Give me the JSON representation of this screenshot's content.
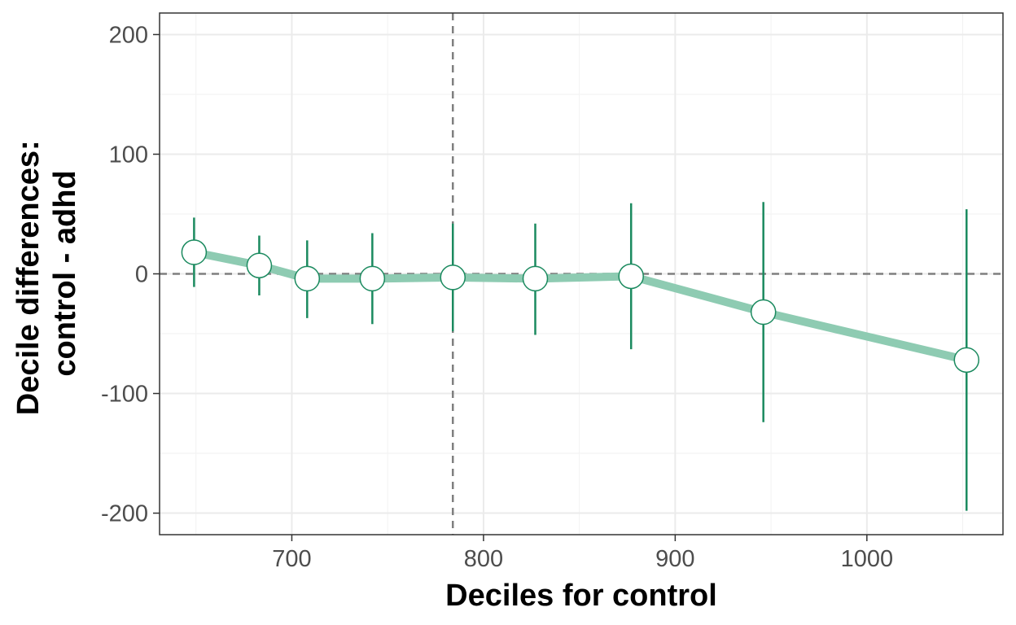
{
  "chart_data": {
    "type": "line",
    "xlabel": "Deciles for control",
    "ylabel_lines": [
      "Decile differences:",
      "control - adhd"
    ],
    "xlim": [
      631,
      1071
    ],
    "ylim": [
      -218,
      218
    ],
    "x_ticks": [
      700,
      800,
      900,
      1000
    ],
    "x_tick_labels": [
      "700",
      "800",
      "900",
      "1000"
    ],
    "x_minor_ticks": [
      650,
      750,
      850,
      950,
      1050
    ],
    "y_ticks": [
      -200,
      -100,
      0,
      100,
      200
    ],
    "y_tick_labels": [
      "-200",
      "-100",
      "0",
      "100",
      "200"
    ],
    "y_minor_ticks": [
      -150,
      -50,
      50,
      150
    ],
    "grid": true,
    "reference_lines": {
      "horizontal_y": 0,
      "vertical_x": 784
    },
    "series": [
      {
        "points": [
          {
            "x": 649,
            "y": 18,
            "lower": -11,
            "upper": 47
          },
          {
            "x": 683,
            "y": 7,
            "lower": -18,
            "upper": 32
          },
          {
            "x": 708,
            "y": -4,
            "lower": -37,
            "upper": 28
          },
          {
            "x": 742,
            "y": -4,
            "lower": -42,
            "upper": 34
          },
          {
            "x": 784,
            "y": -3,
            "lower": -48,
            "upper": 42
          },
          {
            "x": 827,
            "y": -4,
            "lower": -51,
            "upper": 42
          },
          {
            "x": 877,
            "y": -2,
            "lower": -63,
            "upper": 59
          },
          {
            "x": 946,
            "y": -32,
            "lower": -124,
            "upper": 60
          },
          {
            "x": 1052,
            "y": -72,
            "lower": -198,
            "upper": 54
          }
        ]
      }
    ],
    "colors": {
      "line": "#8ecbb2",
      "error_bar": "#1b8a5f",
      "marker_fill": "#ffffff",
      "marker_stroke": "#1b8a5f",
      "reference_line": "#7f7f7f",
      "panel_border": "#333333"
    }
  }
}
